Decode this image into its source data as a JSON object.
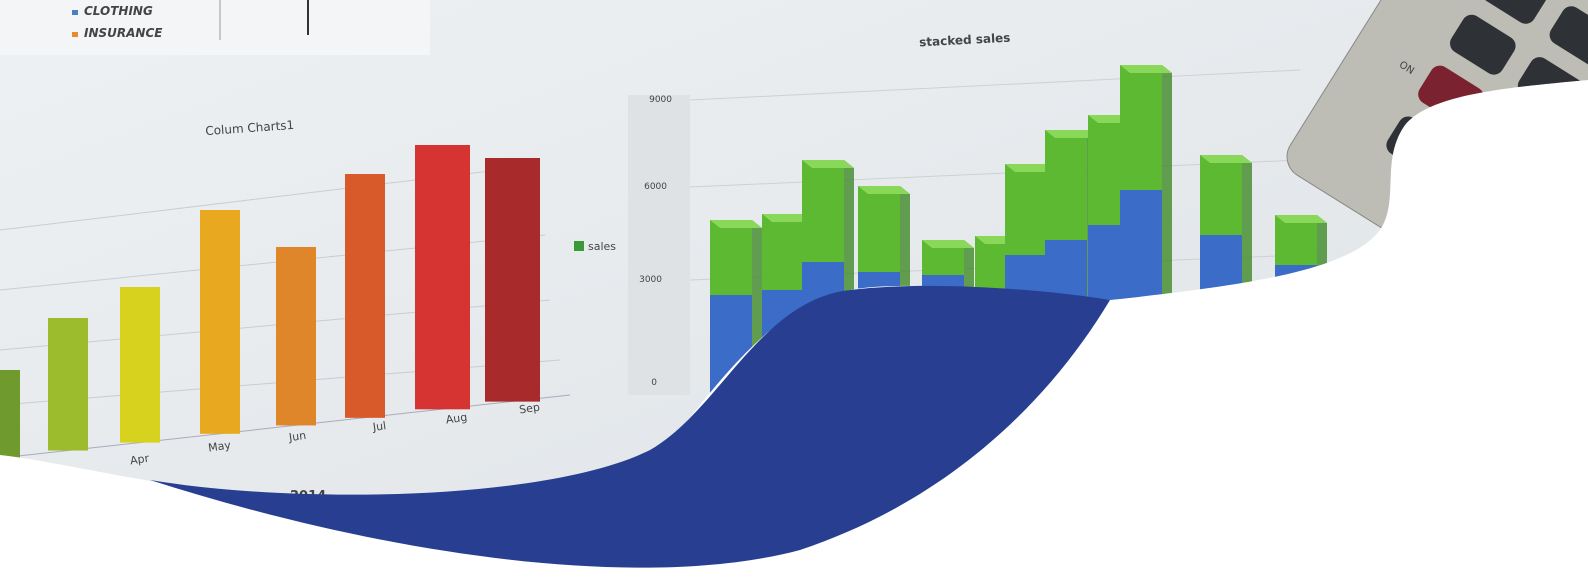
{
  "legend": {
    "items": [
      "CLOTHING",
      "INSURANCE"
    ]
  },
  "left_chart": {
    "title": "Colum Charts1",
    "categories": [
      "Apr",
      "May",
      "Jun",
      "Jul",
      "Aug",
      "Sep"
    ]
  },
  "right_chart": {
    "title": "stacked sales",
    "legend": "sales",
    "yticks": [
      "9000",
      "6000",
      "3000",
      "0"
    ]
  },
  "calculator": {
    "label": "ON"
  },
  "caption": "2014"
}
